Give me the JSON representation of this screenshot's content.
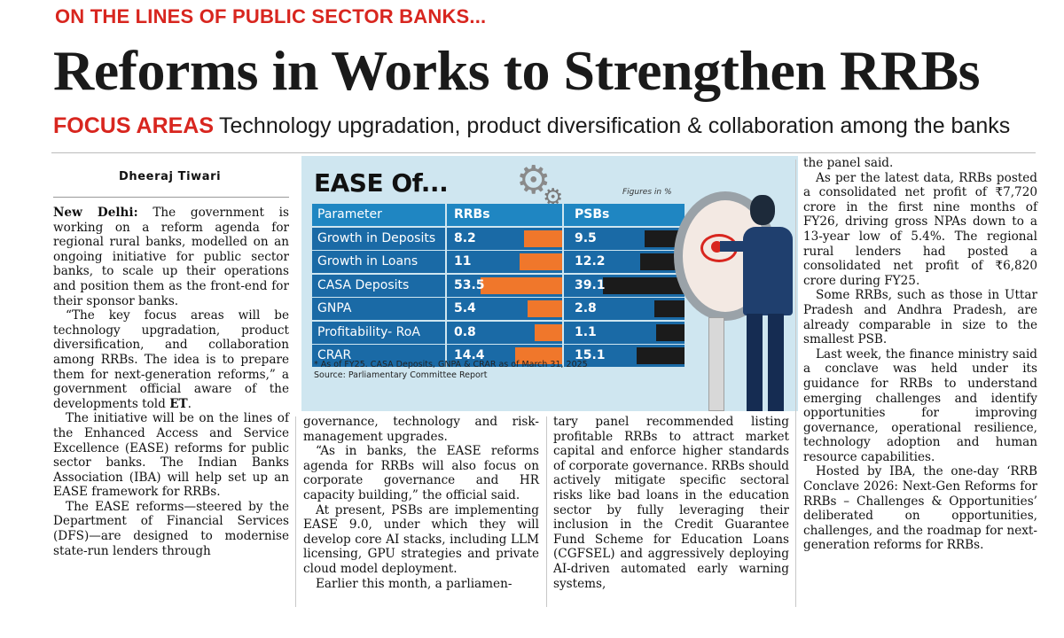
{
  "kicker": "ON THE LINES OF PUBLIC SECTOR BANKS...",
  "headline": "Reforms in Works to Strengthen RRBs",
  "focus": {
    "label": "FOCUS AREAS",
    "text": "Technology upgradation, product diversification & collaboration among the banks"
  },
  "byline": "Dheeraj Tiwari",
  "graphic": {
    "title": "EASE Of...",
    "figures_note": "Figures in %",
    "header": {
      "parameter": "Parameter",
      "rrbs": "RRBs",
      "psbs": "PSBs"
    },
    "footnote_1": "* As of FY25. CASA Deposits, GNPA & CRAR as of March 31, 2025",
    "footnote_2": "Source: Parliamentary Committee Report",
    "colors": {
      "header": "#1f86c2",
      "row": "#1a6aa6",
      "rrb_bar": "#f0772b",
      "psb_bar": "#1b1b1b"
    }
  },
  "chart_data": {
    "type": "table",
    "title": "EASE Of...",
    "columns": [
      "Parameter",
      "RRBs",
      "PSBs"
    ],
    "rows": [
      {
        "parameter": "Growth in Deposits",
        "rrbs": "8.2",
        "psbs": "9.5",
        "rrb_value": 8.2,
        "psb_value": 9.5
      },
      {
        "parameter": "Growth in Loans",
        "rrbs": "11",
        "psbs": "12.2",
        "rrb_value": 11,
        "psb_value": 12.2
      },
      {
        "parameter": "CASA Deposits",
        "rrbs": "53.5",
        "psbs": "39.1",
        "rrb_value": 53.5,
        "psb_value": 39.1
      },
      {
        "parameter": "GNPA",
        "rrbs": "5.4",
        "psbs": "2.8",
        "rrb_value": 5.4,
        "psb_value": 2.8
      },
      {
        "parameter": "Profitability- RoA",
        "rrbs": "0.8",
        "psbs": "1.1",
        "rrb_value": 0.8,
        "psb_value": 1.1
      },
      {
        "parameter": "CRAR",
        "rrbs": "14.4",
        "psbs": "15.1",
        "rrb_value": 14.4,
        "psb_value": 15.1
      }
    ],
    "units": "Figures in %"
  },
  "col1": {
    "dateline": "New Delhi:",
    "p1": "The government is working on a reform agenda for regional rural banks, modelled on an ongoing initiative for public sector banks, to scale up their operations and position them as the front-end for their sponsor banks.",
    "p2": "“The key focus areas will be technology upgradation, product diversification, and collaboration among RRBs. The idea is to prepare them for next-generation reforms,” a government official aware of the developments told",
    "et": "ET",
    "p3": "The initiative will be on the lines of the Enhanced Access and Service Excellence (EASE) reforms for public sector banks. The Indian Banks Association (IBA) will help set up an EASE framework for RRBs.",
    "p4": "The EASE reforms—steered by the Department of Financial Services (DFS)—are designed to modernise state-run lenders through"
  },
  "col2": {
    "p1": "governance, technology and risk-management upgrades.",
    "p2": "“As in banks, the EASE reforms agenda for RRBs will also focus on corporate governance and HR capacity building,” the official said.",
    "p3": "At present, PSBs are implementing EASE 9.0, under which they will develop core AI stacks, including LLM licensing, GPU strategies and private cloud model deployment.",
    "p4": "Earlier this month, a parliamen-"
  },
  "col3": {
    "p1": "tary panel recommended listing profitable RRBs to attract market capital and enforce higher standards of corporate governance. RRBs should actively mitigate specific sectoral risks like bad loans in the education sector by fully leveraging their inclusion in the Credit Guarantee Fund Scheme for Education Loans (CGFSEL) and aggressively deploying AI-driven automated early warning systems,"
  },
  "col4": {
    "p0": "the panel said.",
    "p1": "As per the latest data, RRBs posted a consolidated net profit of ₹7,720 crore in the first nine months of FY26, driving gross NPAs down to a 13-year low of 5.4%. The regional rural lenders had posted a consolidated net profit of ₹6,820 crore during FY25.",
    "p2": "Some RRBs, such as those in Uttar Pradesh and Andhra Pradesh, are already comparable in size to the smallest PSB.",
    "p3": "Last week, the finance ministry said a conclave was held under its guidance for RRBs to understand emerging challenges and identify opportunities for improving governance, operational resilience, technology adoption and human resource capabilities.",
    "p4": "Hosted by IBA, the one-day ‘RRB Conclave 2026: Next-Gen Reforms for RRBs – Challenges & Opportunities’ deliberated on opportunities, challenges, and the roadmap for next-generation reforms for RRBs."
  }
}
